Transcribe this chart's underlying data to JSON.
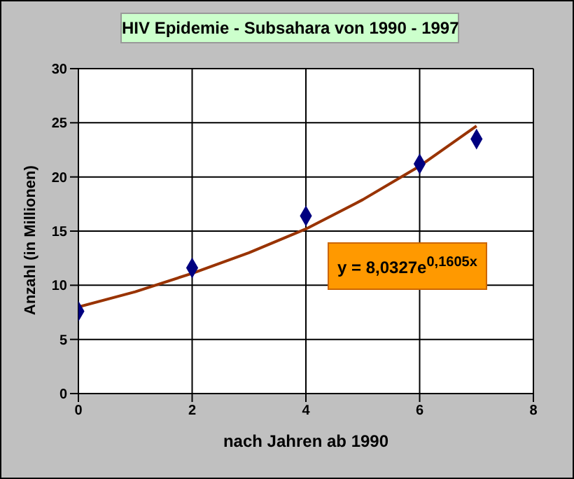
{
  "chart_data": {
    "type": "scatter",
    "title": "HIV Epidemie - Subsahara von 1990 - 1997",
    "xlabel": "nach Jahren ab 1990",
    "ylabel": "Anzahl (in Millionen)",
    "x": [
      0,
      2,
      4,
      6,
      7
    ],
    "series": [
      {
        "color": "#000080",
        "marker": "diamond",
        "values": [
          7.6,
          11.6,
          16.4,
          21.2,
          23.5
        ]
      },
      {
        "type": "line",
        "color": "#993300",
        "marker": "none",
        "x": [
          0,
          1,
          2,
          3,
          4,
          5,
          6,
          7
        ],
        "values": [
          8.0,
          9.4,
          11.1,
          13.0,
          15.2,
          17.9,
          21.0,
          24.7
        ]
      }
    ],
    "annotations": [
      "y = 8,0327e$^{0,1605x}$"
    ],
    "xlim": [
      0,
      8
    ],
    "xticks": [
      0,
      2,
      4,
      6,
      8
    ],
    "ylim": [
      0,
      30
    ],
    "yticks": [
      0,
      5,
      10,
      15,
      20,
      25,
      30
    ],
    "grid": true
  }
}
